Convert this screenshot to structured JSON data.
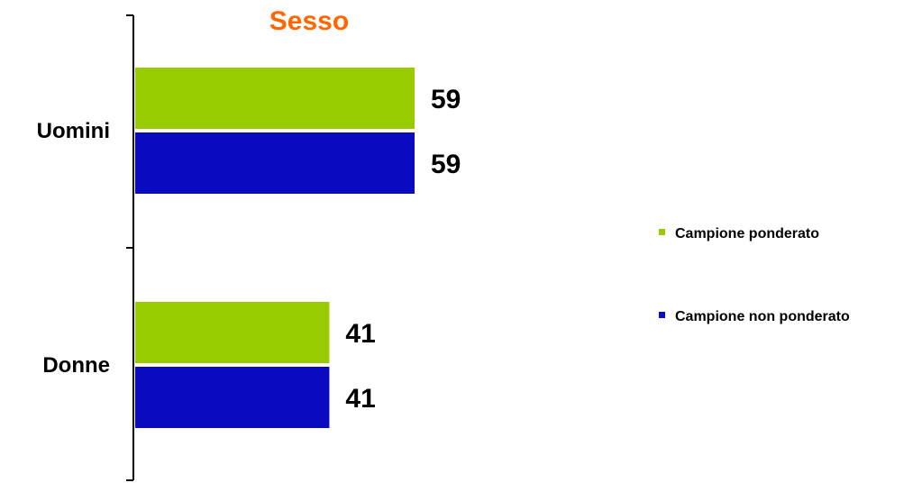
{
  "chart_data": {
    "type": "bar",
    "orientation": "horizontal",
    "title": "Sesso",
    "categories": [
      "Uomini",
      "Donne"
    ],
    "series": [
      {
        "name": "Campione ponderato",
        "values": [
          59,
          41
        ],
        "color": "#99cc00"
      },
      {
        "name": "Campione non ponderato",
        "values": [
          59,
          41
        ],
        "color": "#0a0ac0"
      }
    ],
    "xlim": [
      0,
      100
    ],
    "grid": false,
    "legend_position": "right",
    "data_labels": true
  },
  "colors": {
    "title": "#ff6600",
    "axis": "#000000"
  }
}
